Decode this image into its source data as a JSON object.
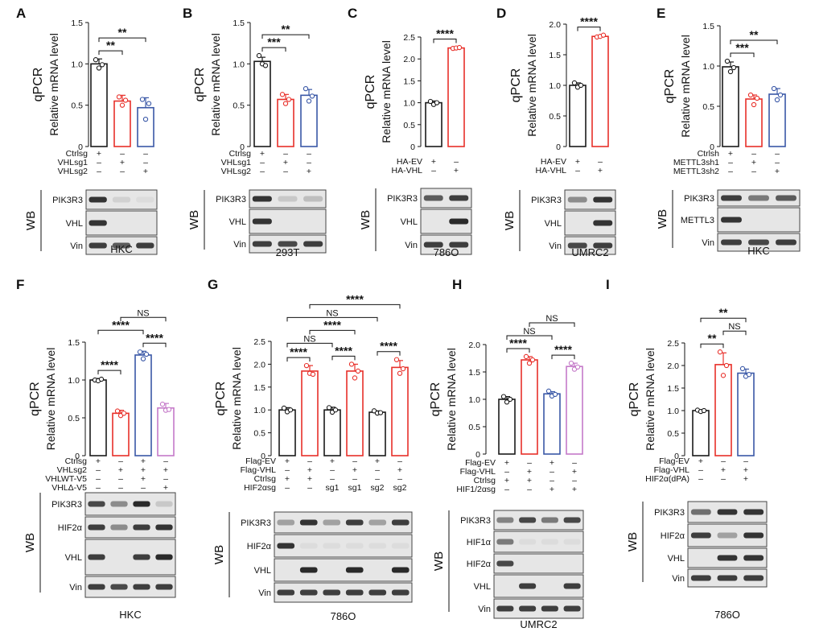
{
  "colors": {
    "black": "#1a1a1a",
    "red": "#e8302a",
    "blue": "#3a58a7",
    "violet": "#c57ac9",
    "blot_bg": "#e6e6e6",
    "band": "#202020"
  },
  "chart_data": [
    {
      "id": "A",
      "type": "bar",
      "panel_label": "A",
      "ylabel": "Relative mRNA level",
      "side_label": "qPCR",
      "ylim": [
        0,
        1.5
      ],
      "ticks": [
        "0",
        "0.5",
        "1.0",
        "1.5"
      ],
      "colors": [
        "#1a1a1a",
        "#e8302a",
        "#3a58a7"
      ],
      "values": [
        1.0,
        0.55,
        0.47
      ],
      "points": [
        [
          1.05,
          0.95,
          0.99
        ],
        [
          0.6,
          0.5,
          0.56
        ],
        [
          0.57,
          0.33,
          0.52
        ]
      ],
      "errors": [
        0.06,
        0.07,
        0.12
      ],
      "sig": [
        {
          "from": 0,
          "to": 1,
          "label": "**"
        },
        {
          "from": 0,
          "to": 2,
          "label": "**"
        }
      ],
      "conditions": [
        {
          "label": "Ctrlsg",
          "marks": [
            "+",
            "–",
            "–"
          ]
        },
        {
          "label": "VHLsg1",
          "marks": [
            "–",
            "+",
            "–"
          ]
        },
        {
          "label": "VHLsg2",
          "marks": [
            "–",
            "–",
            "+"
          ]
        }
      ],
      "blot": {
        "lanes": 3,
        "rows": [
          {
            "label": "PIK3R3",
            "bands": [
              0.9,
              0.1,
              0.05
            ]
          },
          {
            "label": "VHL",
            "bands": [
              0.9,
              0,
              0
            ]
          },
          {
            "label": "Vin",
            "bands": [
              0.85,
              0.7,
              0.85
            ]
          }
        ]
      },
      "cell_line": "HKC"
    },
    {
      "id": "B",
      "type": "bar",
      "panel_label": "B",
      "ylabel": "Relative mRNA level",
      "side_label": "qPCR",
      "ylim": [
        0,
        1.5
      ],
      "ticks": [
        "0",
        "0.5",
        "1.0",
        "1.5"
      ],
      "colors": [
        "#1a1a1a",
        "#e8302a",
        "#3a58a7"
      ],
      "values": [
        1.03,
        0.57,
        0.62
      ],
      "points": [
        [
          1.1,
          1.0,
          0.98
        ],
        [
          0.63,
          0.52,
          0.57
        ],
        [
          0.7,
          0.55,
          0.61
        ]
      ],
      "errors": [
        0.05,
        0.06,
        0.07
      ],
      "sig": [
        {
          "from": 0,
          "to": 1,
          "label": "***"
        },
        {
          "from": 0,
          "to": 2,
          "label": "**"
        }
      ],
      "conditions": [
        {
          "label": "Ctrlsg",
          "marks": [
            "+",
            "–",
            "–"
          ]
        },
        {
          "label": "VHLsg1",
          "marks": [
            "–",
            "+",
            "–"
          ]
        },
        {
          "label": "VHLsg2",
          "marks": [
            "–",
            "–",
            "+"
          ]
        }
      ],
      "blot": {
        "lanes": 3,
        "rows": [
          {
            "label": "PIK3R3",
            "bands": [
              0.9,
              0.15,
              0.2
            ]
          },
          {
            "label": "VHL",
            "bands": [
              0.9,
              0,
              0
            ]
          },
          {
            "label": "Vin",
            "bands": [
              0.85,
              0.8,
              0.85
            ]
          }
        ]
      },
      "cell_line": "293T"
    },
    {
      "id": "C",
      "type": "bar",
      "panel_label": "C",
      "ylabel": "Relative mRNA level",
      "side_label": "qPCR",
      "ylim": [
        0,
        2.5
      ],
      "ticks": [
        "0",
        "0.5",
        "1.0",
        "1.5",
        "2.0",
        "2.5"
      ],
      "colors": [
        "#1a1a1a",
        "#e8302a"
      ],
      "values": [
        1.0,
        2.25
      ],
      "points": [
        [
          1.03,
          0.96,
          1.0
        ],
        [
          2.24,
          2.25,
          2.26
        ]
      ],
      "errors": [
        0.04,
        0.02
      ],
      "sig": [
        {
          "from": 0,
          "to": 1,
          "label": "****"
        }
      ],
      "conditions": [
        {
          "label": "HA-EV",
          "marks": [
            "+",
            "–"
          ]
        },
        {
          "label": "HA-VHL",
          "marks": [
            "–",
            "+"
          ]
        }
      ],
      "blot": {
        "lanes": 2,
        "rows": [
          {
            "label": "PIK3R3",
            "bands": [
              0.7,
              0.85
            ]
          },
          {
            "label": "VHL",
            "bands": [
              0,
              0.95
            ]
          },
          {
            "label": "Vin",
            "bands": [
              0.85,
              0.85
            ]
          }
        ]
      },
      "cell_line": "786O"
    },
    {
      "id": "D",
      "type": "bar",
      "panel_label": "D",
      "ylabel": "Relative mRNA level",
      "side_label": "qPCR",
      "ylim": [
        0,
        2.0
      ],
      "ticks": [
        "0",
        "0.5",
        "1.0",
        "1.5",
        "2.0"
      ],
      "colors": [
        "#1a1a1a",
        "#e8302a"
      ],
      "values": [
        1.0,
        1.8
      ],
      "points": [
        [
          1.04,
          0.97,
          1.0
        ],
        [
          1.79,
          1.8,
          1.82
        ]
      ],
      "errors": [
        0.04,
        0.02
      ],
      "sig": [
        {
          "from": 0,
          "to": 1,
          "label": "****"
        }
      ],
      "conditions": [
        {
          "label": "HA-EV",
          "marks": [
            "+",
            "–"
          ]
        },
        {
          "label": "HA-VHL",
          "marks": [
            "–",
            "+"
          ]
        }
      ],
      "blot": {
        "lanes": 2,
        "rows": [
          {
            "label": "PIK3R3",
            "bands": [
              0.45,
              0.9
            ]
          },
          {
            "label": "VHL",
            "bands": [
              0,
              0.9
            ]
          },
          {
            "label": "Vin",
            "bands": [
              0.8,
              0.85
            ]
          }
        ]
      },
      "cell_line": "UMRC2"
    },
    {
      "id": "E",
      "type": "bar",
      "panel_label": "E",
      "ylabel": "Relative mRNA level",
      "side_label": "qPCR",
      "ylim": [
        0,
        1.5
      ],
      "ticks": [
        "0",
        "0.5",
        "1.0",
        "1.5"
      ],
      "colors": [
        "#1a1a1a",
        "#e8302a",
        "#3a58a7"
      ],
      "values": [
        0.99,
        0.59,
        0.65
      ],
      "points": [
        [
          1.06,
          0.93,
          0.98
        ],
        [
          0.64,
          0.52,
          0.6
        ],
        [
          0.72,
          0.58,
          0.64
        ]
      ],
      "errors": [
        0.06,
        0.05,
        0.07
      ],
      "sig": [
        {
          "from": 0,
          "to": 1,
          "label": "***"
        },
        {
          "from": 0,
          "to": 2,
          "label": "**"
        }
      ],
      "conditions": [
        {
          "label": "Ctrlsh",
          "marks": [
            "+",
            "–",
            "–"
          ]
        },
        {
          "label": "METTL3sh1",
          "marks": [
            "–",
            "+",
            "–"
          ]
        },
        {
          "label": "METTL3sh2",
          "marks": [
            "–",
            "–",
            "+"
          ]
        }
      ],
      "blot": {
        "lanes": 3,
        "rows": [
          {
            "label": "PIK3R3",
            "bands": [
              0.85,
              0.55,
              0.7
            ]
          },
          {
            "label": "METTL3",
            "bands": [
              0.9,
              0,
              0
            ]
          },
          {
            "label": "Vin",
            "bands": [
              0.85,
              0.8,
              0.85
            ]
          }
        ]
      },
      "cell_line": "HKC"
    },
    {
      "id": "F",
      "type": "bar",
      "panel_label": "F",
      "ylabel": "Relative mRNA level",
      "side_label": "qPCR",
      "ylim": [
        0,
        1.5
      ],
      "ticks": [
        "0",
        "0.5",
        "1.0",
        "1.5"
      ],
      "colors": [
        "#1a1a1a",
        "#e8302a",
        "#3a58a7",
        "#c57ac9"
      ],
      "values": [
        1.0,
        0.56,
        1.33,
        0.63
      ],
      "points": [
        [
          1.0,
          0.99,
          1.01
        ],
        [
          0.59,
          0.53,
          0.56
        ],
        [
          1.37,
          1.28,
          1.34
        ],
        [
          0.68,
          0.6,
          0.61
        ]
      ],
      "errors": [
        0.02,
        0.04,
        0.05,
        0.06
      ],
      "sig": [
        {
          "from": 0,
          "to": 1,
          "label": "****"
        },
        {
          "from": 2,
          "to": 3,
          "label": "****"
        },
        {
          "from": 0,
          "to": 2,
          "label": "****"
        },
        {
          "from": 1,
          "to": 3,
          "label": "NS"
        }
      ],
      "conditions": [
        {
          "label": "Ctrlsg",
          "marks": [
            "+",
            "–",
            "+",
            "–"
          ]
        },
        {
          "label": "VHLsg2",
          "marks": [
            "–",
            "+",
            "+",
            "+"
          ]
        },
        {
          "label": "VHLWT-V5",
          "marks": [
            "–",
            "–",
            "+",
            "–"
          ]
        },
        {
          "label": "VHLΔ-V5",
          "marks": [
            "–",
            "–",
            "–",
            "+"
          ]
        }
      ],
      "blot": {
        "lanes": 4,
        "rows": [
          {
            "label": "PIK3R3",
            "bands": [
              0.8,
              0.45,
              0.95,
              0.15
            ]
          },
          {
            "label": "HIF2α",
            "bands": [
              0.85,
              0.45,
              0.85,
              0.9
            ]
          },
          {
            "label": "VHL",
            "bands": [
              0.85,
              0,
              0.85,
              0.95
            ]
          },
          {
            "label": "Vin",
            "bands": [
              0.85,
              0.8,
              0.85,
              0.85
            ]
          }
        ]
      },
      "cell_line": "HKC"
    },
    {
      "id": "G",
      "type": "bar",
      "panel_label": "G",
      "ylabel": "Relative mRNA level",
      "side_label": "qPCR",
      "ylim": [
        0,
        2.5
      ],
      "ticks": [
        "0",
        "0.5",
        "1.0",
        "1.5",
        "2.0",
        "2.5"
      ],
      "colors": [
        "#1a1a1a",
        "#e8302a",
        "#1a1a1a",
        "#e8302a",
        "#1a1a1a",
        "#e8302a"
      ],
      "values": [
        1.0,
        1.85,
        1.0,
        1.85,
        0.95,
        1.93
      ],
      "points": [
        [
          1.04,
          0.96,
          1.0
        ],
        [
          1.97,
          1.8,
          1.78
        ],
        [
          1.05,
          0.95,
          1.0
        ],
        [
          2.0,
          1.7,
          1.85
        ],
        [
          0.98,
          0.93,
          0.94
        ],
        [
          2.1,
          1.8,
          1.9
        ]
      ],
      "errors": [
        0.05,
        0.12,
        0.06,
        0.15,
        0.03,
        0.15
      ],
      "sig": [
        {
          "from": 0,
          "to": 1,
          "label": "****"
        },
        {
          "from": 2,
          "to": 3,
          "label": "****"
        },
        {
          "from": 4,
          "to": 5,
          "label": "****"
        },
        {
          "from": 0,
          "to": 2,
          "label": "NS"
        },
        {
          "from": 1,
          "to": 3,
          "label": "****"
        },
        {
          "from": 0,
          "to": 4,
          "label": "NS"
        },
        {
          "from": 1,
          "to": 5,
          "label": "****"
        }
      ],
      "conditions": [
        {
          "label": "Flag-EV",
          "marks": [
            "+",
            "–",
            "+",
            "–",
            "+",
            "–"
          ]
        },
        {
          "label": "Flag-VHL",
          "marks": [
            "–",
            "+",
            "–",
            "+",
            "–",
            "+"
          ]
        },
        {
          "label": "Ctrlsg",
          "marks": [
            "+",
            "+",
            "–",
            "–",
            "–",
            "–"
          ]
        },
        {
          "label": "HIF2αsg",
          "marks": [
            "–",
            "–",
            "sg1",
            "sg1",
            "sg2",
            "sg2"
          ]
        }
      ],
      "blot": {
        "lanes": 6,
        "rows": [
          {
            "label": "PIK3R3",
            "bands": [
              0.35,
              0.9,
              0.35,
              0.85,
              0.35,
              0.85
            ]
          },
          {
            "label": "HIF2α",
            "bands": [
              0.9,
              0.05,
              0.05,
              0.05,
              0.05,
              0.05
            ]
          },
          {
            "label": "VHL",
            "bands": [
              0,
              0.95,
              0,
              0.95,
              0,
              0.95
            ]
          },
          {
            "label": "Vin",
            "bands": [
              0.85,
              0.85,
              0.85,
              0.85,
              0.85,
              0.85
            ]
          }
        ]
      },
      "cell_line": "786O"
    },
    {
      "id": "H",
      "type": "bar",
      "panel_label": "H",
      "ylabel": "Relative mRNA level",
      "side_label": "qPCR",
      "ylim": [
        0,
        2.0
      ],
      "ticks": [
        "0",
        "0.5",
        "1.0",
        "1.5",
        "2.0"
      ],
      "colors": [
        "#1a1a1a",
        "#e8302a",
        "#3a58a7",
        "#c57ac9"
      ],
      "values": [
        1.0,
        1.72,
        1.1,
        1.6
      ],
      "points": [
        [
          1.05,
          0.95,
          1.0
        ],
        [
          1.78,
          1.66,
          1.72
        ],
        [
          1.15,
          1.06,
          1.09
        ],
        [
          1.66,
          1.55,
          1.59
        ]
      ],
      "errors": [
        0.05,
        0.06,
        0.04,
        0.06
      ],
      "sig": [
        {
          "from": 0,
          "to": 1,
          "label": "****"
        },
        {
          "from": 2,
          "to": 3,
          "label": "****"
        },
        {
          "from": 0,
          "to": 2,
          "label": "NS"
        },
        {
          "from": 1,
          "to": 3,
          "label": "NS"
        }
      ],
      "conditions": [
        {
          "label": "Flag-EV",
          "marks": [
            "+",
            "–",
            "+",
            "–"
          ]
        },
        {
          "label": "Flag-VHL",
          "marks": [
            "–",
            "+",
            "–",
            "+"
          ]
        },
        {
          "label": "Ctrlsg",
          "marks": [
            "+",
            "+",
            "–",
            "–"
          ]
        },
        {
          "label": "HIF1/2αsg",
          "marks": [
            "–",
            "–",
            "+",
            "+"
          ]
        }
      ],
      "blot": {
        "lanes": 4,
        "rows": [
          {
            "label": "PIK3R3",
            "bands": [
              0.5,
              0.8,
              0.55,
              0.8
            ]
          },
          {
            "label": "HIF1α",
            "bands": [
              0.55,
              0.05,
              0.05,
              0.05
            ]
          },
          {
            "label": "HIF2α",
            "bands": [
              0.8,
              0,
              0,
              0
            ]
          },
          {
            "label": "VHL",
            "bands": [
              0,
              0.85,
              0,
              0.85
            ]
          },
          {
            "label": "Vin",
            "bands": [
              0.85,
              0.85,
              0.85,
              0.85
            ]
          }
        ]
      },
      "cell_line": "UMRC2"
    },
    {
      "id": "I",
      "type": "bar",
      "panel_label": "I",
      "ylabel": "Relative mRNA level",
      "side_label": "qPCR",
      "ylim": [
        0,
        2.5
      ],
      "ticks": [
        "0",
        "0.5",
        "1.0",
        "1.5",
        "2.0",
        "2.5"
      ],
      "colors": [
        "#1a1a1a",
        "#e8302a",
        "#3a58a7"
      ],
      "values": [
        1.0,
        2.02,
        1.83
      ],
      "points": [
        [
          1.01,
          0.98,
          1.0
        ],
        [
          2.3,
          1.78,
          2.0
        ],
        [
          1.93,
          1.76,
          1.8
        ]
      ],
      "errors": [
        0.02,
        0.26,
        0.09
      ],
      "sig": [
        {
          "from": 0,
          "to": 1,
          "label": "**"
        },
        {
          "from": 0,
          "to": 2,
          "label": "**"
        },
        {
          "from": 1,
          "to": 2,
          "label": "NS"
        }
      ],
      "conditions": [
        {
          "label": "Flag-EV",
          "marks": [
            "+",
            "–",
            "–"
          ]
        },
        {
          "label": "Flag-VHL",
          "marks": [
            "–",
            "+",
            "+"
          ]
        },
        {
          "label": "HIF2α(dPA)",
          "marks": [
            "–",
            "–",
            "+"
          ]
        }
      ],
      "blot": {
        "lanes": 3,
        "rows": [
          {
            "label": "PIK3R3",
            "bands": [
              0.6,
              0.9,
              0.9
            ]
          },
          {
            "label": "HIF2α",
            "bands": [
              0.85,
              0.35,
              0.9
            ]
          },
          {
            "label": "VHL",
            "bands": [
              0,
              0.9,
              0.9
            ]
          },
          {
            "label": "Vin",
            "bands": [
              0.85,
              0.85,
              0.85
            ]
          }
        ]
      },
      "cell_line": "786O"
    }
  ]
}
